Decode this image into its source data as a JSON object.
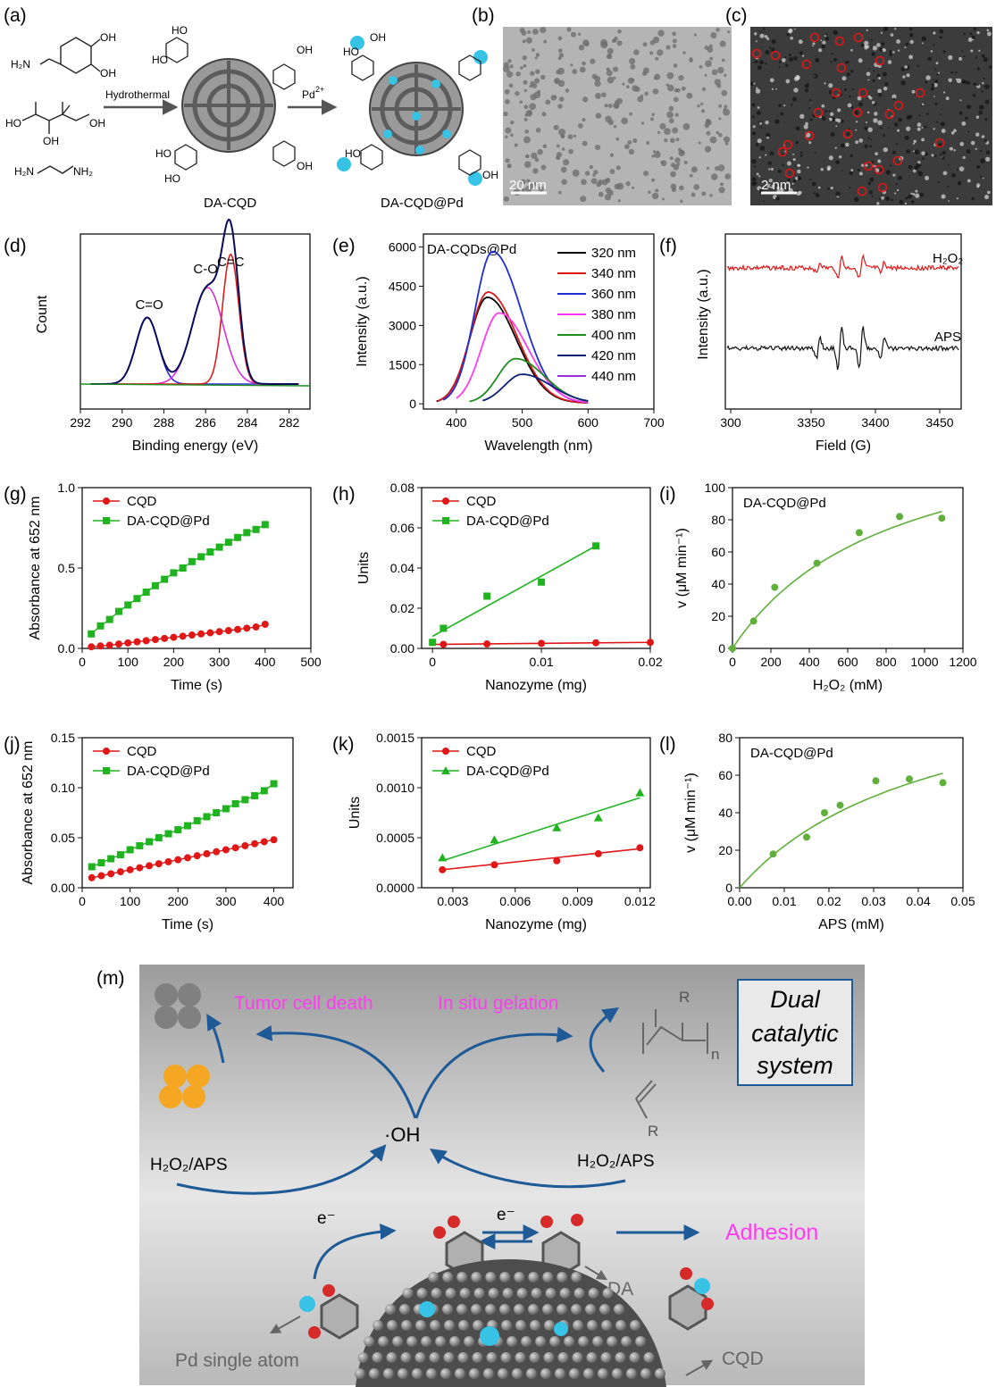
{
  "panels": {
    "a": {
      "label": "(a)",
      "arrow1_label": "Hydrothermal",
      "arrow2_label": "Pd",
      "arrow2_sup": "2+",
      "product1": "DA-CQD",
      "product2": "DA-CQD@Pd",
      "atoms": {
        "oh": "OH",
        "ho": "HO",
        "h2n": "H₂N",
        "nh2": "NH₂"
      }
    },
    "b": {
      "label": "(b)",
      "scalebar": "20 nm"
    },
    "c": {
      "label": "(c)",
      "scalebar": "2 nm"
    },
    "m": {
      "label": "(m)",
      "tumor": "Tumor cell death",
      "gelation": "In situ gelation",
      "dual_line1": "Dual",
      "dual_line2": "catalytic",
      "dual_line3": "system",
      "oh_radical": "·OH",
      "h2o2_aps_left": "H₂O₂/APS",
      "h2o2_aps_right": "H₂O₂/APS",
      "electron1": "e⁻",
      "electron2": "e⁻",
      "adhesion": "Adhesion",
      "da": "DA",
      "pd_atom": "Pd single atom",
      "cqd": "CQD",
      "polymer_r": "R",
      "polymer_n": "n",
      "monomer_r": "R"
    }
  },
  "colors": {
    "green": "#1fb31f",
    "red": "#e01717",
    "blue": "#1e2fd0",
    "magenta": "#ff3cf0",
    "navy": "#1d5a96",
    "cyan": "#36c3e6"
  },
  "chart_data": [
    {
      "id": "d",
      "type": "line",
      "panel_label": "(d)",
      "xlabel": "Binding energy (eV)",
      "ylabel": "Count",
      "xlim": [
        292,
        281
      ],
      "x_ticks": [
        292,
        290,
        288,
        286,
        284,
        282
      ],
      "reversed_x": true,
      "annotations": [
        {
          "text": "C=O",
          "x": 288.7
        },
        {
          "text": "C-O",
          "x": 286.0
        },
        {
          "text": "C=C",
          "x": 284.8
        }
      ],
      "series": [
        {
          "name": "C=O",
          "color": "#2d2dd8",
          "type": "gauss",
          "center": 288.8,
          "height": 0.4,
          "width": 0.75
        },
        {
          "name": "C-O",
          "color": "#d82fd8",
          "type": "gauss",
          "center": 285.9,
          "height": 0.58,
          "width": 1.05
        },
        {
          "name": "C=C",
          "color": "#d81f1f",
          "type": "gauss",
          "center": 284.8,
          "height": 0.78,
          "width": 0.55
        }
      ]
    },
    {
      "id": "e",
      "type": "line",
      "panel_label": "(e)",
      "title": "DA-CQDs@Pd",
      "xlabel": "Wavelength (nm)",
      "ylabel": "Intensity (a.u.)",
      "xlim": [
        350,
        700
      ],
      "ylim": [
        -200,
        6500
      ],
      "x_ticks": [
        400,
        500,
        600,
        700
      ],
      "y_ticks": [
        0,
        1500,
        3000,
        4500,
        6000
      ],
      "series": [
        {
          "name": "320 nm",
          "color": "#000000",
          "peak": 4050,
          "center": 447,
          "start": 370
        },
        {
          "name": "340 nm",
          "color": "#e01717",
          "peak": 4250,
          "center": 448,
          "start": 372
        },
        {
          "name": "360 nm",
          "color": "#1e2fd0",
          "peak": 5800,
          "center": 455,
          "start": 380
        },
        {
          "name": "380 nm",
          "color": "#ff3cf0",
          "peak": 3450,
          "center": 465,
          "start": 400
        },
        {
          "name": "400 nm",
          "color": "#1e8f1e",
          "peak": 1700,
          "center": 490,
          "start": 420
        },
        {
          "name": "420 nm",
          "color": "#0a1f7a",
          "peak": 1100,
          "center": 500,
          "start": 440
        },
        {
          "name": "440 nm",
          "color": "#9a2fd8",
          "peak": 0,
          "center": 520,
          "start": 460
        }
      ]
    },
    {
      "id": "f",
      "type": "line",
      "panel_label": "(f)",
      "xlabel": "Field (G)",
      "ylabel": "Intensity (a.u.)",
      "xlim": [
        300,
        3480
      ],
      "x_ticks_labels": [
        "300",
        "3350",
        "3400",
        "3450"
      ],
      "series": [
        {
          "name": "H₂O₂",
          "color": "#e01717"
        },
        {
          "name": "APS",
          "color": "#111111"
        }
      ]
    },
    {
      "id": "g",
      "type": "scatter",
      "panel_label": "(g)",
      "xlabel": "Time (s)",
      "ylabel": "Absorbance at 652 nm",
      "xlim": [
        0,
        500
      ],
      "ylim": [
        0,
        1.0
      ],
      "x_ticks": [
        0,
        100,
        200,
        300,
        400,
        500
      ],
      "y_ticks": [
        0.0,
        0.5,
        1.0
      ],
      "x": [
        20,
        40,
        60,
        80,
        100,
        120,
        140,
        160,
        180,
        200,
        220,
        240,
        260,
        280,
        300,
        320,
        340,
        360,
        380,
        400
      ],
      "series": [
        {
          "name": "CQD",
          "marker": "circle",
          "color": "#e01717",
          "values": [
            0.01,
            0.015,
            0.02,
            0.027,
            0.034,
            0.041,
            0.048,
            0.055,
            0.062,
            0.069,
            0.076,
            0.083,
            0.09,
            0.097,
            0.104,
            0.111,
            0.118,
            0.126,
            0.133,
            0.15
          ]
        },
        {
          "name": "DA-CQD@Pd",
          "marker": "square",
          "color": "#1fb31f",
          "values": [
            0.09,
            0.14,
            0.18,
            0.23,
            0.27,
            0.31,
            0.35,
            0.39,
            0.43,
            0.47,
            0.5,
            0.54,
            0.57,
            0.6,
            0.63,
            0.66,
            0.69,
            0.72,
            0.74,
            0.77
          ]
        }
      ]
    },
    {
      "id": "h",
      "type": "scatter",
      "panel_label": "(h)",
      "xlabel": "Nanozyme (mg)",
      "ylabel": "Units",
      "xlim": [
        -0.001,
        0.02
      ],
      "ylim": [
        0,
        0.08
      ],
      "x_ticks": [
        0.0,
        0.01,
        0.02
      ],
      "y_ticks": [
        0.0,
        0.02,
        0.04,
        0.06,
        0.08
      ],
      "series": [
        {
          "name": "CQD",
          "marker": "circle",
          "color": "#e01717",
          "x": [
            0.001,
            0.005,
            0.01,
            0.015,
            0.02
          ],
          "values": [
            0.002,
            0.0022,
            0.0025,
            0.0028,
            0.003
          ],
          "fit": [
            [
              0.0,
              0.002
            ],
            [
              0.02,
              0.003
            ]
          ]
        },
        {
          "name": "DA-CQD@Pd",
          "marker": "square",
          "color": "#1fb31f",
          "x": [
            0.0,
            0.001,
            0.005,
            0.01,
            0.015
          ],
          "values": [
            0.003,
            0.01,
            0.026,
            0.033,
            0.051
          ],
          "fit": [
            [
              0.0,
              0.006
            ],
            [
              0.015,
              0.051
            ]
          ]
        }
      ]
    },
    {
      "id": "i",
      "type": "scatter",
      "panel_label": "(i)",
      "title": "DA-CQD@Pd",
      "xlabel": "H₂O₂ (mM)",
      "ylabel": "v (μM min⁻¹)",
      "xlim": [
        0,
        1200
      ],
      "ylim": [
        0,
        100
      ],
      "x_ticks": [
        0,
        200,
        400,
        600,
        800,
        1000,
        1200
      ],
      "y_ticks": [
        0,
        20,
        40,
        60,
        80,
        100
      ],
      "series": [
        {
          "name": "DA-CQD@Pd",
          "marker": "circle",
          "color": "#5faf3a",
          "x": [
            0,
            110,
            220,
            440,
            660,
            870,
            1090
          ],
          "values": [
            0,
            17,
            38,
            53,
            72,
            82,
            81
          ],
          "fit": {
            "vmax": 150,
            "km": 830
          }
        }
      ]
    },
    {
      "id": "j",
      "type": "scatter",
      "panel_label": "(j)",
      "xlabel": "Time (s)",
      "ylabel": "Absorbance at 652 nm",
      "xlim": [
        0,
        440
      ],
      "ylim": [
        0,
        0.15
      ],
      "x_ticks": [
        0,
        100,
        200,
        300,
        400
      ],
      "y_ticks": [
        0.0,
        0.05,
        0.1,
        0.15
      ],
      "x": [
        20,
        40,
        60,
        80,
        100,
        120,
        140,
        160,
        180,
        200,
        220,
        240,
        260,
        280,
        300,
        320,
        340,
        360,
        380,
        400
      ],
      "series": [
        {
          "name": "CQD",
          "marker": "circle",
          "color": "#e01717",
          "values": [
            0.01,
            0.012,
            0.014,
            0.016,
            0.018,
            0.02,
            0.022,
            0.024,
            0.026,
            0.028,
            0.03,
            0.032,
            0.034,
            0.036,
            0.038,
            0.04,
            0.042,
            0.044,
            0.046,
            0.048
          ]
        },
        {
          "name": "DA-CQD@Pd",
          "marker": "square",
          "color": "#1fb31f",
          "values": [
            0.021,
            0.025,
            0.029,
            0.033,
            0.038,
            0.042,
            0.046,
            0.05,
            0.054,
            0.058,
            0.062,
            0.067,
            0.071,
            0.075,
            0.079,
            0.084,
            0.088,
            0.092,
            0.097,
            0.104
          ]
        }
      ]
    },
    {
      "id": "k",
      "type": "scatter",
      "panel_label": "(k)",
      "xlabel": "Nanozyme (mg)",
      "ylabel": "Units",
      "xlim": [
        0.0015,
        0.0125
      ],
      "ylim": [
        0,
        0.0015
      ],
      "x_ticks": [
        0.003,
        0.006,
        0.009,
        0.012
      ],
      "y_ticks": [
        0.0,
        0.0005,
        0.001,
        0.0015
      ],
      "series": [
        {
          "name": "CQD",
          "marker": "circle",
          "color": "#e01717",
          "x": [
            0.0025,
            0.005,
            0.008,
            0.01,
            0.012
          ],
          "values": [
            0.00018,
            0.00023,
            0.00027,
            0.00034,
            0.0004
          ],
          "fit": [
            [
              0.0025,
              0.00018
            ],
            [
              0.012,
              0.00039
            ]
          ]
        },
        {
          "name": "DA-CQD@Pd",
          "marker": "triangle",
          "color": "#1fb31f",
          "x": [
            0.0025,
            0.005,
            0.008,
            0.01,
            0.012
          ],
          "values": [
            0.0003,
            0.00048,
            0.0006,
            0.0007,
            0.00095
          ],
          "fit": [
            [
              0.0025,
              0.00027
            ],
            [
              0.012,
              0.0009
            ]
          ]
        }
      ]
    },
    {
      "id": "l",
      "type": "scatter",
      "panel_label": "(l)",
      "title": "DA-CQD@Pd",
      "xlabel": "APS (mM)",
      "ylabel": "v (μM min⁻¹)",
      "xlim": [
        0,
        0.05
      ],
      "ylim": [
        0,
        80
      ],
      "x_ticks": [
        0.0,
        0.01,
        0.02,
        0.03,
        0.04,
        0.05
      ],
      "y_ticks": [
        0,
        20,
        40,
        60,
        80
      ],
      "series": [
        {
          "name": "DA-CQD@Pd",
          "marker": "circle",
          "color": "#5faf3a",
          "x": [
            0.0075,
            0.015,
            0.019,
            0.0225,
            0.0305,
            0.038,
            0.0455
          ],
          "values": [
            18,
            27,
            40,
            44,
            57,
            58,
            56
          ],
          "fit": {
            "vmax": 120,
            "km": 0.044
          }
        }
      ]
    }
  ]
}
